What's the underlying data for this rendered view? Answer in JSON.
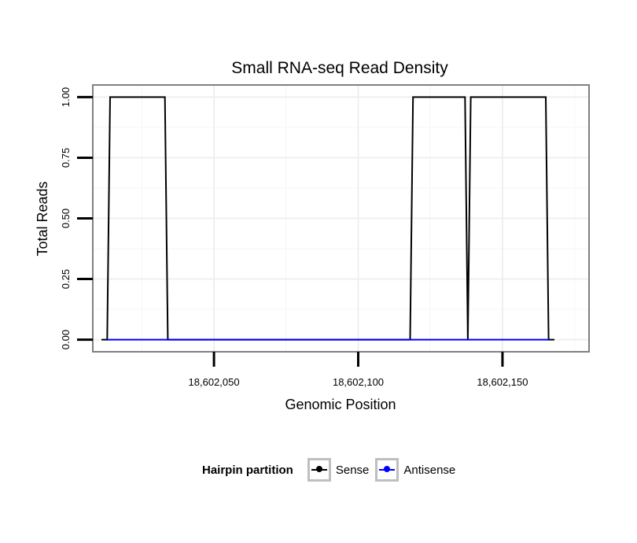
{
  "chart_data": {
    "type": "line",
    "title": "Small RNA-seq Read Density",
    "xlabel": "Genomic Position",
    "ylabel": "Total Reads",
    "xlim": [
      18602008,
      18602180
    ],
    "ylim": [
      -0.05,
      1.05
    ],
    "x_ticks": [
      18602050,
      18602100,
      18602150
    ],
    "x_tick_labels": [
      "18,602,050",
      "18,602,100",
      "18,602,150"
    ],
    "y_ticks": [
      0,
      0.25,
      0.5,
      0.75,
      1.0
    ],
    "y_tick_labels": [
      "0.00",
      "0.25",
      "0.50",
      "0.75",
      "1.00"
    ],
    "grid": true,
    "legend": {
      "title": "Hairpin partition",
      "position": "bottom",
      "entries": [
        {
          "label": "Sense",
          "color": "#000000"
        },
        {
          "label": "Antisense",
          "color": "#0000ff"
        }
      ]
    },
    "series": [
      {
        "name": "Sense",
        "color": "#000000",
        "x": [
          18602011,
          18602013,
          18602014,
          18602033,
          18602034,
          18602118,
          18602119,
          18602137,
          18602138,
          18602139,
          18602140,
          18602165,
          18602166,
          18602168
        ],
        "y": [
          0,
          0,
          1,
          1,
          0,
          0,
          1,
          1,
          0,
          1,
          1,
          1,
          0,
          0
        ]
      },
      {
        "name": "Antisense",
        "color": "#0000ff",
        "x": [
          18602013,
          18602166
        ],
        "y": [
          0,
          0
        ]
      }
    ]
  }
}
